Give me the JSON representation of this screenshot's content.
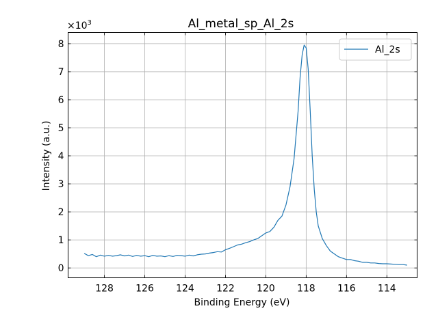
{
  "chart_data": {
    "type": "line",
    "title": "Al_metal_sp_Al_2s",
    "xlabel": "Binding Energy (eV)",
    "ylabel": "Intensity (a.u.)",
    "y_multiplier_base": "×10",
    "y_multiplier_exponent": "3",
    "xlim": [
      129.8,
      112.5
    ],
    "ylim": [
      -0.35,
      8.4
    ],
    "x_inverted": true,
    "grid": true,
    "legend_position": "top-right",
    "x_ticks": [
      128,
      126,
      124,
      122,
      120,
      118,
      116,
      114
    ],
    "x_tick_labels": [
      "128",
      "126",
      "124",
      "122",
      "120",
      "118",
      "116",
      "114"
    ],
    "y_ticks": [
      0,
      1,
      2,
      3,
      4,
      5,
      6,
      7,
      8
    ],
    "y_tick_labels": [
      "0",
      "1",
      "2",
      "3",
      "4",
      "5",
      "6",
      "7",
      "8"
    ],
    "series": [
      {
        "name": "Al_2s",
        "color": "#1f77b4",
        "x": [
          129.0,
          128.8,
          128.6,
          128.4,
          128.2,
          128.0,
          127.8,
          127.6,
          127.4,
          127.2,
          127.0,
          126.8,
          126.6,
          126.4,
          126.2,
          126.0,
          125.8,
          125.6,
          125.4,
          125.2,
          125.0,
          124.8,
          124.6,
          124.4,
          124.2,
          124.0,
          123.8,
          123.6,
          123.4,
          123.2,
          123.0,
          122.8,
          122.6,
          122.4,
          122.2,
          122.0,
          121.8,
          121.6,
          121.4,
          121.2,
          121.0,
          120.8,
          120.6,
          120.4,
          120.2,
          120.0,
          119.8,
          119.6,
          119.4,
          119.2,
          119.0,
          118.8,
          118.6,
          118.4,
          118.3,
          118.2,
          118.1,
          118.0,
          117.9,
          117.8,
          117.7,
          117.6,
          117.5,
          117.4,
          117.2,
          117.0,
          116.8,
          116.6,
          116.4,
          116.2,
          116.0,
          115.8,
          115.6,
          115.4,
          115.2,
          115.0,
          114.8,
          114.6,
          114.4,
          114.2,
          114.0,
          113.8,
          113.6,
          113.4,
          113.2,
          113.0
        ],
        "y": [
          0.52,
          0.44,
          0.48,
          0.4,
          0.46,
          0.42,
          0.45,
          0.42,
          0.44,
          0.47,
          0.43,
          0.46,
          0.41,
          0.45,
          0.42,
          0.44,
          0.4,
          0.45,
          0.42,
          0.43,
          0.4,
          0.44,
          0.41,
          0.45,
          0.44,
          0.42,
          0.46,
          0.43,
          0.47,
          0.49,
          0.5,
          0.53,
          0.55,
          0.58,
          0.57,
          0.65,
          0.7,
          0.76,
          0.82,
          0.85,
          0.9,
          0.94,
          1.0,
          1.05,
          1.15,
          1.25,
          1.3,
          1.45,
          1.7,
          1.85,
          2.25,
          2.9,
          3.9,
          5.6,
          6.8,
          7.6,
          7.95,
          7.85,
          7.1,
          5.6,
          4.0,
          2.8,
          2.0,
          1.5,
          1.05,
          0.8,
          0.6,
          0.5,
          0.4,
          0.35,
          0.3,
          0.3,
          0.26,
          0.24,
          0.2,
          0.2,
          0.18,
          0.18,
          0.16,
          0.15,
          0.15,
          0.14,
          0.13,
          0.12,
          0.12,
          0.1
        ]
      }
    ]
  }
}
